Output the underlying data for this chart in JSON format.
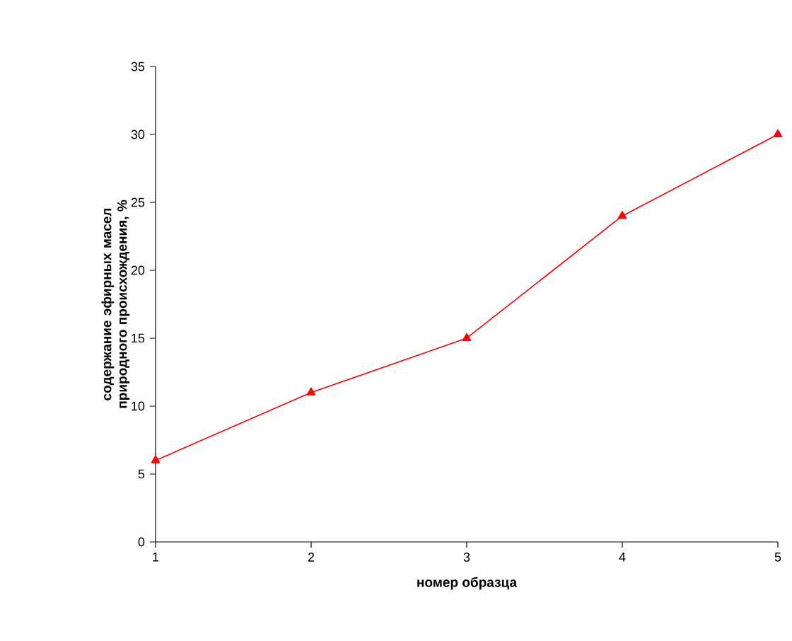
{
  "chart_data": {
    "type": "line",
    "xlabel": "номер образца",
    "ylabel": "содержание эфирных масел природного происхождения, %",
    "x": [
      1,
      2,
      3,
      4,
      5
    ],
    "series": [
      {
        "color": "#ff0000",
        "values": [
          6,
          11,
          15,
          24,
          30
        ]
      }
    ],
    "xlim": [
      1,
      5
    ],
    "xticks": [
      1,
      2,
      3,
      4,
      5
    ],
    "ylim": [
      0,
      35
    ],
    "yticks": [
      0,
      5,
      10,
      15,
      20,
      25,
      30,
      35
    ],
    "grid": false,
    "legend": false,
    "marker": "triangle",
    "line_style": "solid"
  }
}
